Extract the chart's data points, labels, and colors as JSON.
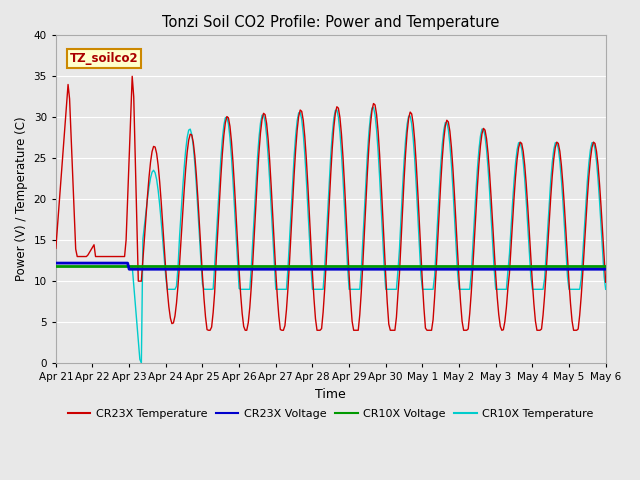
{
  "title": "Tonzi Soil CO2 Profile: Power and Temperature",
  "xlabel": "Time",
  "ylabel": "Power (V) / Temperature (C)",
  "ylim": [
    0,
    40
  ],
  "tick_labels": [
    "Apr 21",
    "Apr 22",
    "Apr 23",
    "Apr 24",
    "Apr 25",
    "Apr 26",
    "Apr 27",
    "Apr 28",
    "Apr 29",
    "Apr 30",
    "May 1",
    "May 2",
    "May 3",
    "May 4",
    "May 5",
    "May 6"
  ],
  "annotation_text": "TZ_soilco2",
  "annotation_bg": "#ffffcc",
  "annotation_border": "#cc8800",
  "bg_color": "#e8e8e8",
  "grid_color": "#ffffff",
  "cr23x_temp_color": "#cc0000",
  "cr23x_volt_color": "#0000cc",
  "cr10x_volt_color": "#009900",
  "cr10x_temp_color": "#00cccc",
  "legend_labels": [
    "CR23X Temperature",
    "CR23X Voltage",
    "CR10X Voltage",
    "CR10X Temperature"
  ]
}
